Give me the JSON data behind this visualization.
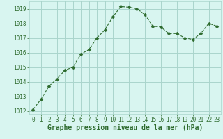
{
  "x": [
    0,
    1,
    2,
    3,
    4,
    5,
    6,
    7,
    8,
    9,
    10,
    11,
    12,
    13,
    14,
    15,
    16,
    17,
    18,
    19,
    20,
    21,
    22,
    23
  ],
  "y": [
    1012.1,
    1012.8,
    1013.7,
    1014.2,
    1014.8,
    1015.0,
    1015.9,
    1016.2,
    1017.0,
    1017.55,
    1018.45,
    1019.15,
    1019.1,
    1019.0,
    1018.6,
    1017.8,
    1017.75,
    1017.3,
    1017.3,
    1017.0,
    1016.9,
    1017.3,
    1018.0,
    1017.8
  ],
  "line_color": "#2d6a2d",
  "marker": "D",
  "marker_size": 2.5,
  "bg_color": "#d8f5f0",
  "grid_color": "#aad4cc",
  "xlabel": "Graphe pression niveau de la mer (hPa)",
  "xlim": [
    -0.5,
    23.5
  ],
  "ylim": [
    1011.8,
    1019.5
  ],
  "yticks": [
    1012,
    1013,
    1014,
    1015,
    1016,
    1017,
    1018,
    1019
  ],
  "xticks": [
    0,
    1,
    2,
    3,
    4,
    5,
    6,
    7,
    8,
    9,
    10,
    11,
    12,
    13,
    14,
    15,
    16,
    17,
    18,
    19,
    20,
    21,
    22,
    23
  ],
  "tick_fontsize": 5.5,
  "xlabel_fontsize": 7.0,
  "label_color": "#2d6a2d"
}
